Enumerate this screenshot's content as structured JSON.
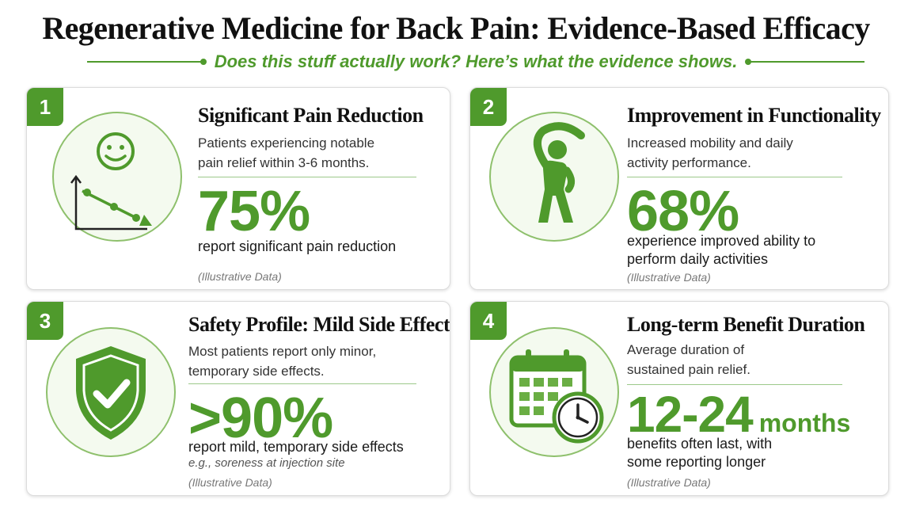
{
  "title": "Regenerative Medicine for Back Pain: Evidence-Based Efficacy",
  "subtitle": "Does this stuff actually work? Here’s what the evidence shows.",
  "colors": {
    "accent": "#4f9a2c",
    "accent_light": "#8ec06c",
    "icon_bg": "#f4faef"
  },
  "cards": [
    {
      "number": "1",
      "icon": "smiley-chart-icon",
      "title": "Significant Pain Reduction",
      "description_line1": "Patients experiencing notable",
      "description_line2": "pain relief within 3-6 months.",
      "stat": "75%",
      "stat_text_line1": "report significant pain reduction",
      "note": "(Illustrative Data)"
    },
    {
      "number": "2",
      "icon": "stretching-person-icon",
      "title": "Improvement in Functionality",
      "description_line1": "Increased mobility and daily",
      "description_line2": "activity performance.",
      "stat": "68%",
      "stat_text_line1": "experience improved ability to",
      "stat_text_line2": "perform daily activities",
      "note": "(Illustrative Data)"
    },
    {
      "number": "3",
      "icon": "shield-check-icon",
      "title": "Safety Profile: Mild Side Effects",
      "description_line1": "Most patients report only minor,",
      "description_line2": "temporary side effects.",
      "stat": ">90%",
      "stat_text_line1": "report mild, temporary side effects",
      "stat_example": "e.g., soreness at injection site",
      "note": "(Illustrative Data)"
    },
    {
      "number": "4",
      "icon": "calendar-clock-icon",
      "title": "Long-term Benefit Duration",
      "description_line1": "Average duration of",
      "description_line2": "sustained pain relief.",
      "stat": "12-24",
      "stat_unit": "months",
      "stat_text_line1": "benefits often last, with",
      "stat_text_line2": "some reporting longer",
      "note": "(Illustrative Data)"
    }
  ]
}
